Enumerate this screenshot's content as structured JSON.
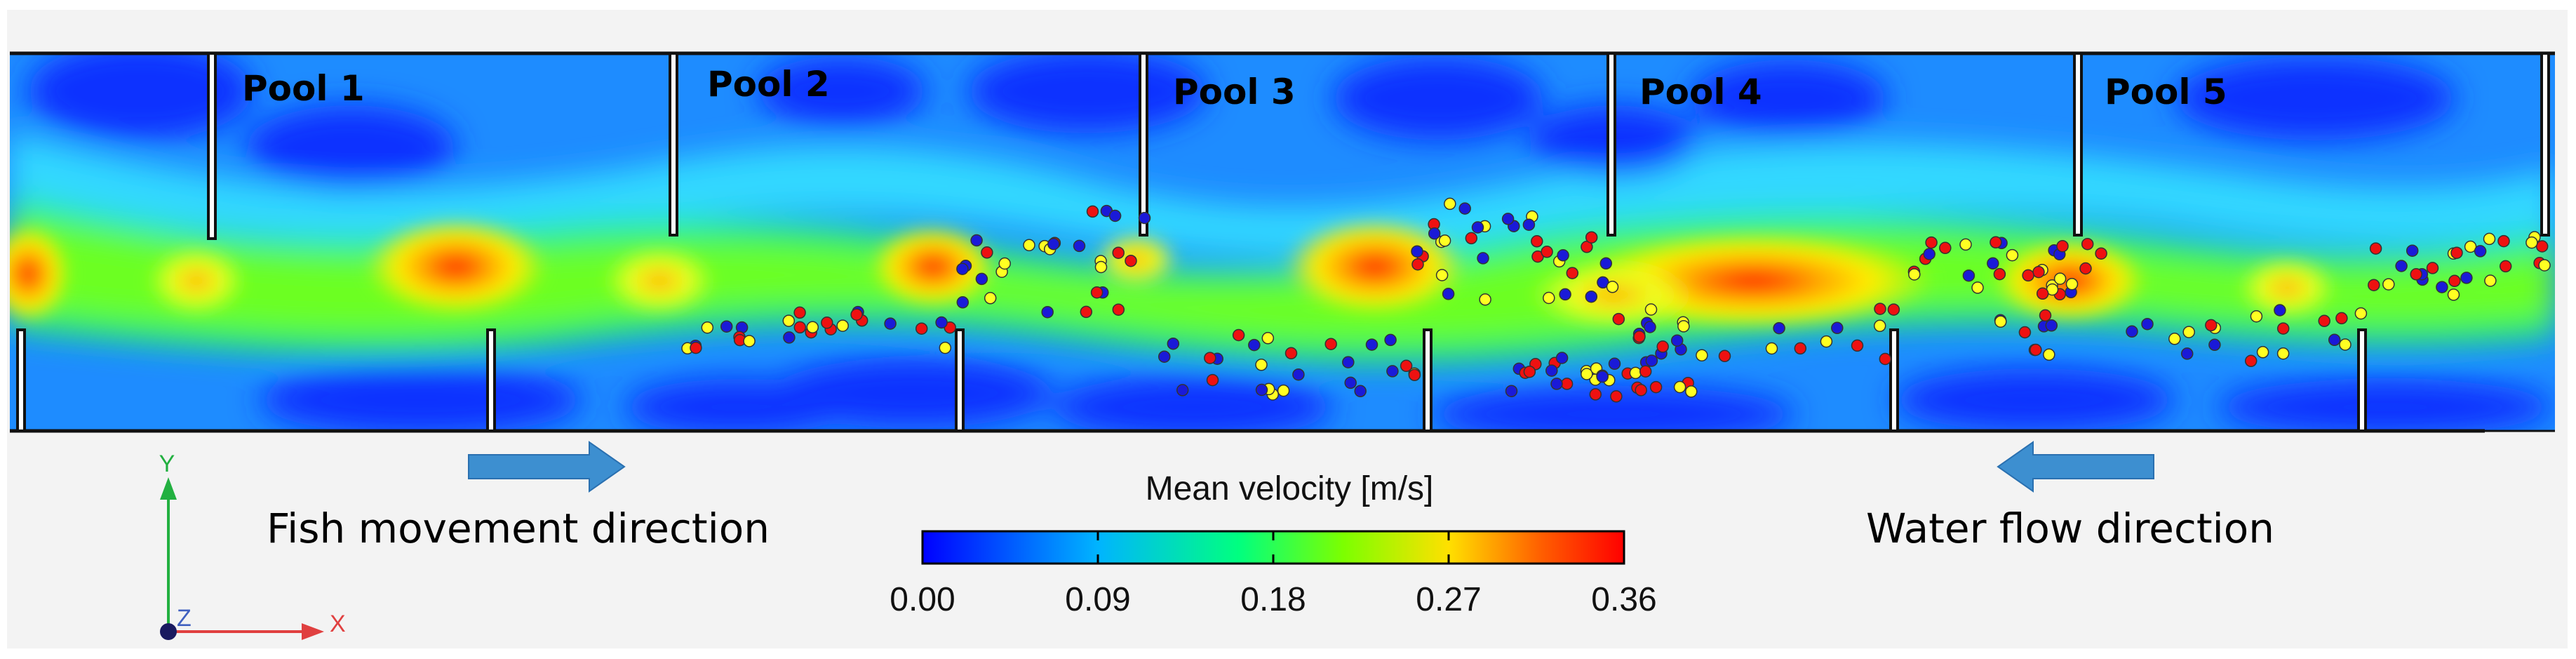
{
  "pools": [
    {
      "label": "Pool 1"
    },
    {
      "label": "Pool 2"
    },
    {
      "label": "Pool 3"
    },
    {
      "label": "Pool 4"
    },
    {
      "label": "Pool 5"
    }
  ],
  "arrows": {
    "fish": {
      "label": "Fish movement direction",
      "direction": "right"
    },
    "water": {
      "label": "Water flow direction",
      "direction": "left"
    }
  },
  "colorbar": {
    "title": "Mean velocity [m/s]",
    "ticks": [
      "0.00",
      "0.09",
      "0.18",
      "0.27",
      "0.36"
    ],
    "min": 0.0,
    "max": 0.36,
    "colors": [
      "#0000ff",
      "#00b4ff",
      "#00ff80",
      "#7cff00",
      "#ffe000",
      "#ff6000",
      "#ff0000"
    ]
  },
  "axes": {
    "y": "Y",
    "x": "X",
    "z": "Z"
  },
  "marker_colors": {
    "red": "#ee1111",
    "blue": "#1a1ad8",
    "yellow": "#ffff22"
  }
}
